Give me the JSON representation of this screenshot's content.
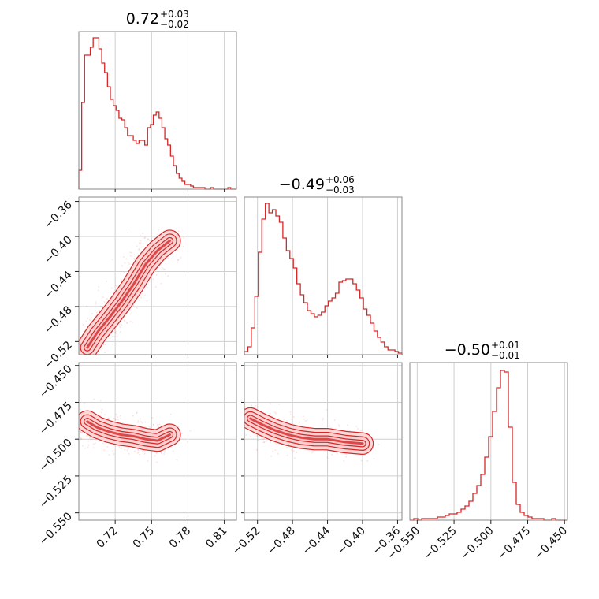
{
  "chart_data": {
    "type": "corner",
    "color": "#d62728",
    "grid": true,
    "parameters": [
      {
        "title_value": "0.72",
        "title_plus": "+0.03",
        "title_minus": "−0.02",
        "range": [
          0.69,
          0.82
        ],
        "ticks": [
          0.72,
          0.75,
          0.78,
          0.81
        ],
        "tick_labels": [
          "0.72",
          "0.75",
          "0.78",
          "0.81"
        ]
      },
      {
        "title_value": "−0.49",
        "title_plus": "+0.06",
        "title_minus": "−0.03",
        "range": [
          -0.535,
          -0.355
        ],
        "ticks": [
          -0.52,
          -0.48,
          -0.44,
          -0.4,
          -0.36
        ],
        "tick_labels": [
          "−0.52",
          "−0.48",
          "−0.44",
          "−0.40",
          "−0.36"
        ]
      },
      {
        "title_value": "−0.50",
        "title_plus": "+0.01",
        "title_minus": "−0.01",
        "range": [
          -0.555,
          -0.448
        ],
        "ticks": [
          -0.55,
          -0.525,
          -0.5,
          -0.475,
          -0.45
        ],
        "tick_labels": [
          "−0.550",
          "−0.525",
          "−0.500",
          "−0.475",
          "−0.450"
        ]
      }
    ],
    "histograms": [
      {
        "param": 0,
        "counts": [
          0.12,
          0.55,
          0.85,
          0.85,
          0.9,
          0.96,
          0.96,
          0.89,
          0.8,
          0.74,
          0.65,
          0.57,
          0.53,
          0.5,
          0.45,
          0.44,
          0.39,
          0.34,
          0.34,
          0.31,
          0.29,
          0.31,
          0.31,
          0.28,
          0.39,
          0.41,
          0.47,
          0.49,
          0.45,
          0.39,
          0.32,
          0.28,
          0.21,
          0.15,
          0.1,
          0.07,
          0.05,
          0.03,
          0.03,
          0.02,
          0.01,
          0.01,
          0.01,
          0.01,
          0.0,
          0.0,
          0.01,
          0.0,
          0.0,
          0.0,
          0.0,
          0.0,
          0.01,
          0.0,
          0.0
        ]
      },
      {
        "param": 1,
        "counts": [
          0.02,
          0.05,
          0.17,
          0.37,
          0.65,
          0.86,
          0.96,
          0.9,
          0.92,
          0.88,
          0.84,
          0.74,
          0.66,
          0.61,
          0.55,
          0.45,
          0.38,
          0.33,
          0.28,
          0.26,
          0.24,
          0.25,
          0.27,
          0.31,
          0.34,
          0.36,
          0.39,
          0.46,
          0.47,
          0.48,
          0.48,
          0.45,
          0.41,
          0.36,
          0.29,
          0.25,
          0.2,
          0.15,
          0.11,
          0.08,
          0.05,
          0.03,
          0.03,
          0.02,
          0.01
        ]
      },
      {
        "param": 2,
        "counts": [
          0.0,
          0.01,
          0.0,
          0.01,
          0.01,
          0.01,
          0.01,
          0.02,
          0.02,
          0.03,
          0.04,
          0.04,
          0.05,
          0.07,
          0.09,
          0.12,
          0.17,
          0.22,
          0.29,
          0.4,
          0.53,
          0.69,
          0.84,
          0.95,
          0.94,
          0.59,
          0.24,
          0.1,
          0.05,
          0.03,
          0.02,
          0.01,
          0.01,
          0.01,
          0.0,
          0.0,
          0.01,
          0.0,
          0.0,
          0.0
        ]
      }
    ],
    "contour_panels": [
      {
        "x_param": 0,
        "y_param": 1,
        "trend": [
          [
            0.697,
            -0.527
          ],
          [
            0.705,
            -0.51
          ],
          [
            0.715,
            -0.493
          ],
          [
            0.725,
            -0.475
          ],
          [
            0.735,
            -0.455
          ],
          [
            0.745,
            -0.432
          ],
          [
            0.755,
            -0.416
          ],
          [
            0.765,
            -0.405
          ]
        ]
      },
      {
        "x_param": 0,
        "y_param": 2,
        "trend": [
          [
            0.697,
            -0.488
          ],
          [
            0.705,
            -0.492
          ],
          [
            0.715,
            -0.495
          ],
          [
            0.725,
            -0.497
          ],
          [
            0.735,
            -0.498
          ],
          [
            0.745,
            -0.5
          ],
          [
            0.755,
            -0.501
          ],
          [
            0.765,
            -0.497
          ]
        ]
      },
      {
        "x_param": 1,
        "y_param": 2,
        "trend": [
          [
            -0.528,
            -0.486
          ],
          [
            -0.515,
            -0.49
          ],
          [
            -0.5,
            -0.494
          ],
          [
            -0.485,
            -0.497
          ],
          [
            -0.47,
            -0.499
          ],
          [
            -0.455,
            -0.5
          ],
          [
            -0.44,
            -0.5
          ],
          [
            -0.42,
            -0.502
          ],
          [
            -0.4,
            -0.503
          ]
        ]
      }
    ]
  }
}
